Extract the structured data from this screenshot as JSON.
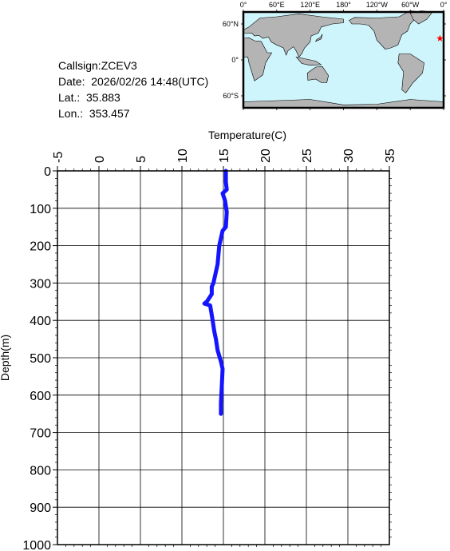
{
  "info": {
    "callsign": "Callsign:ZCEV3",
    "date": "Date:  2026/02/26 14:48(UTC)",
    "lat": "Lat.:  35.883",
    "lon": "Lon.:  353.457"
  },
  "map": {
    "lon_labels": [
      "0°",
      "60°E",
      "120°E",
      "180°",
      "120°W",
      "60°W",
      "0°"
    ],
    "lat_labels": [
      "60°N",
      "0°",
      "60°S"
    ],
    "station_lon": 353.457,
    "station_lat": 35.883,
    "ocean_color": "#cff5fc",
    "land_color": "#b4b4b4",
    "marker_color": "#ff0000"
  },
  "chart_data": {
    "type": "line",
    "title": "",
    "xlabel": "Temperature(C)",
    "ylabel": "Depth(m)",
    "xlim": [
      -5,
      35
    ],
    "ylim": [
      0,
      1000
    ],
    "y_inverted": true,
    "x_ticks": [
      "-5",
      "0",
      "5",
      "10",
      "15",
      "20",
      "25",
      "30",
      "35"
    ],
    "y_ticks": [
      "0",
      "100",
      "200",
      "300",
      "400",
      "500",
      "600",
      "700",
      "800",
      "900",
      "1000"
    ],
    "grid": true,
    "series": [
      {
        "color": "#1414ff",
        "x": [
          15.3,
          15.3,
          15.4,
          14.9,
          15.2,
          15.4,
          15.3,
          14.9,
          14.5,
          14.3,
          14.0,
          13.8,
          13.6,
          13.6,
          13.0,
          12.7,
          13.4,
          13.7,
          13.9,
          14.1,
          14.3,
          14.7,
          14.9,
          14.8,
          14.7,
          14.7
        ],
        "y": [
          0,
          30,
          50,
          60,
          80,
          110,
          150,
          160,
          200,
          250,
          280,
          300,
          310,
          330,
          350,
          355,
          360,
          400,
          430,
          450,
          480,
          510,
          530,
          580,
          620,
          650
        ]
      }
    ]
  }
}
